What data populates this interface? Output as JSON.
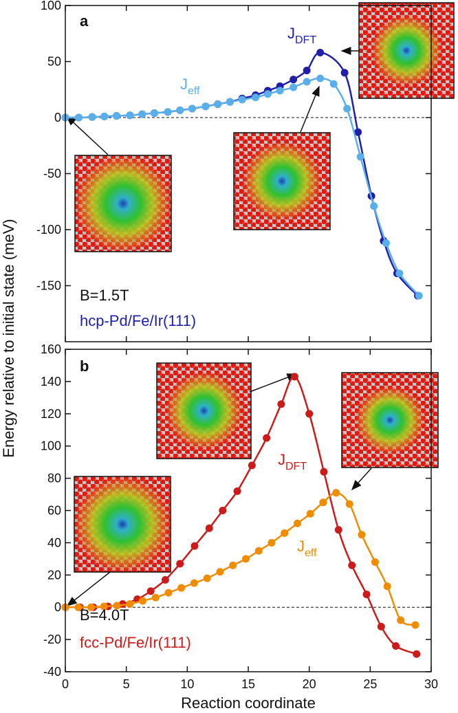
{
  "chart_data": [
    {
      "type": "line",
      "panel_label": "a",
      "ylabel": "Energy relative to initial state (meV)",
      "annotations": [
        "B=1.5T",
        "hcp-Pd/Fe/Ir(111)"
      ],
      "annotation_colors": [
        "#111111",
        "#1f1fa8"
      ],
      "xlim": [
        0,
        30
      ],
      "xticks": [
        0,
        5,
        10,
        15,
        20,
        25,
        30
      ],
      "ylim": [
        -200,
        100
      ],
      "yticks": [
        -150,
        -100,
        -50,
        0,
        50,
        100
      ],
      "series": [
        {
          "name": "J",
          "subscript": "DFT",
          "color": "#1f1fa8",
          "x": [
            0,
            1.1,
            2.2,
            3.2,
            4.2,
            5.3,
            6.3,
            7.3,
            8.4,
            9.4,
            10.4,
            11.5,
            12.5,
            13.5,
            14.5,
            15.6,
            16.6,
            17.6,
            18.7,
            19.8,
            20.9,
            22.9,
            24.0,
            25.1,
            26.1,
            27.2,
            28.9
          ],
          "values": [
            0,
            0,
            0.5,
            1,
            1.5,
            2,
            3,
            4,
            5,
            6.5,
            8,
            10,
            12,
            14,
            17,
            20,
            24,
            28,
            34,
            42,
            58,
            40,
            -13,
            -70,
            -110,
            -139,
            -159
          ]
        },
        {
          "name": "J",
          "subscript": "eff",
          "color": "#5aaeea",
          "x": [
            0,
            1.1,
            2.2,
            3.2,
            4.2,
            5.3,
            6.3,
            7.3,
            8.4,
            9.4,
            10.4,
            11.5,
            12.5,
            13.5,
            14.5,
            15.6,
            16.6,
            17.6,
            18.7,
            19.8,
            20.9,
            22,
            23.1,
            24.2,
            25.3,
            26.3,
            27.4,
            29
          ],
          "values": [
            0,
            0,
            0.5,
            1,
            1.5,
            2,
            3,
            4,
            5,
            6.5,
            8,
            10,
            12,
            14,
            16,
            18,
            21,
            24,
            27,
            32,
            35,
            30,
            8,
            -35,
            -79,
            -112,
            -139,
            -159
          ]
        }
      ]
    },
    {
      "type": "line",
      "panel_label": "b",
      "xlabel": "Reaction coordinate",
      "annotations": [
        "B=4.0T",
        "fcc-Pd/Fe/Ir(111)"
      ],
      "annotation_colors": [
        "#111111",
        "#cc1b1b"
      ],
      "xlim": [
        0,
        30
      ],
      "xticks": [
        0,
        5,
        10,
        15,
        20,
        25,
        30
      ],
      "ylim": [
        -40,
        160
      ],
      "yticks": [
        -40,
        -20,
        0,
        20,
        40,
        60,
        80,
        100,
        120,
        140,
        160
      ],
      "series": [
        {
          "name": "J",
          "subscript": "DFT",
          "color": "#cc1b1b",
          "x": [
            0,
            1.2,
            2.3,
            3.5,
            4.7,
            5.9,
            7.0,
            8.2,
            9.4,
            10.6,
            11.8,
            12.9,
            14.1,
            15.3,
            16.5,
            17.7,
            18.8,
            20.0,
            21.2,
            22.4,
            23.5,
            24.7,
            25.9,
            27.1,
            28.8
          ],
          "values": [
            0,
            0,
            0,
            0.5,
            2,
            5,
            10,
            17,
            27,
            38,
            49,
            60,
            72,
            88,
            105,
            126,
            143,
            120,
            84,
            48,
            26,
            8,
            -12,
            -24,
            -29
          ]
        },
        {
          "name": "J",
          "subscript": "eff",
          "color": "#f08c00",
          "x": [
            0,
            1.06,
            2.11,
            3.17,
            4.23,
            5.29,
            6.34,
            7.4,
            8.46,
            9.51,
            10.57,
            11.63,
            12.69,
            13.74,
            14.8,
            15.86,
            16.91,
            17.97,
            19.03,
            20.09,
            21.14,
            22.2,
            23.3,
            24.3,
            25.4,
            26.4,
            27.5,
            28.7
          ],
          "values": [
            0,
            0,
            0,
            0.5,
            1,
            2,
            4,
            6,
            9,
            12,
            15,
            18,
            22,
            26,
            30,
            35,
            40,
            46,
            52,
            58,
            65,
            71,
            64,
            45,
            28,
            13,
            -8,
            -11
          ]
        }
      ]
    }
  ]
}
